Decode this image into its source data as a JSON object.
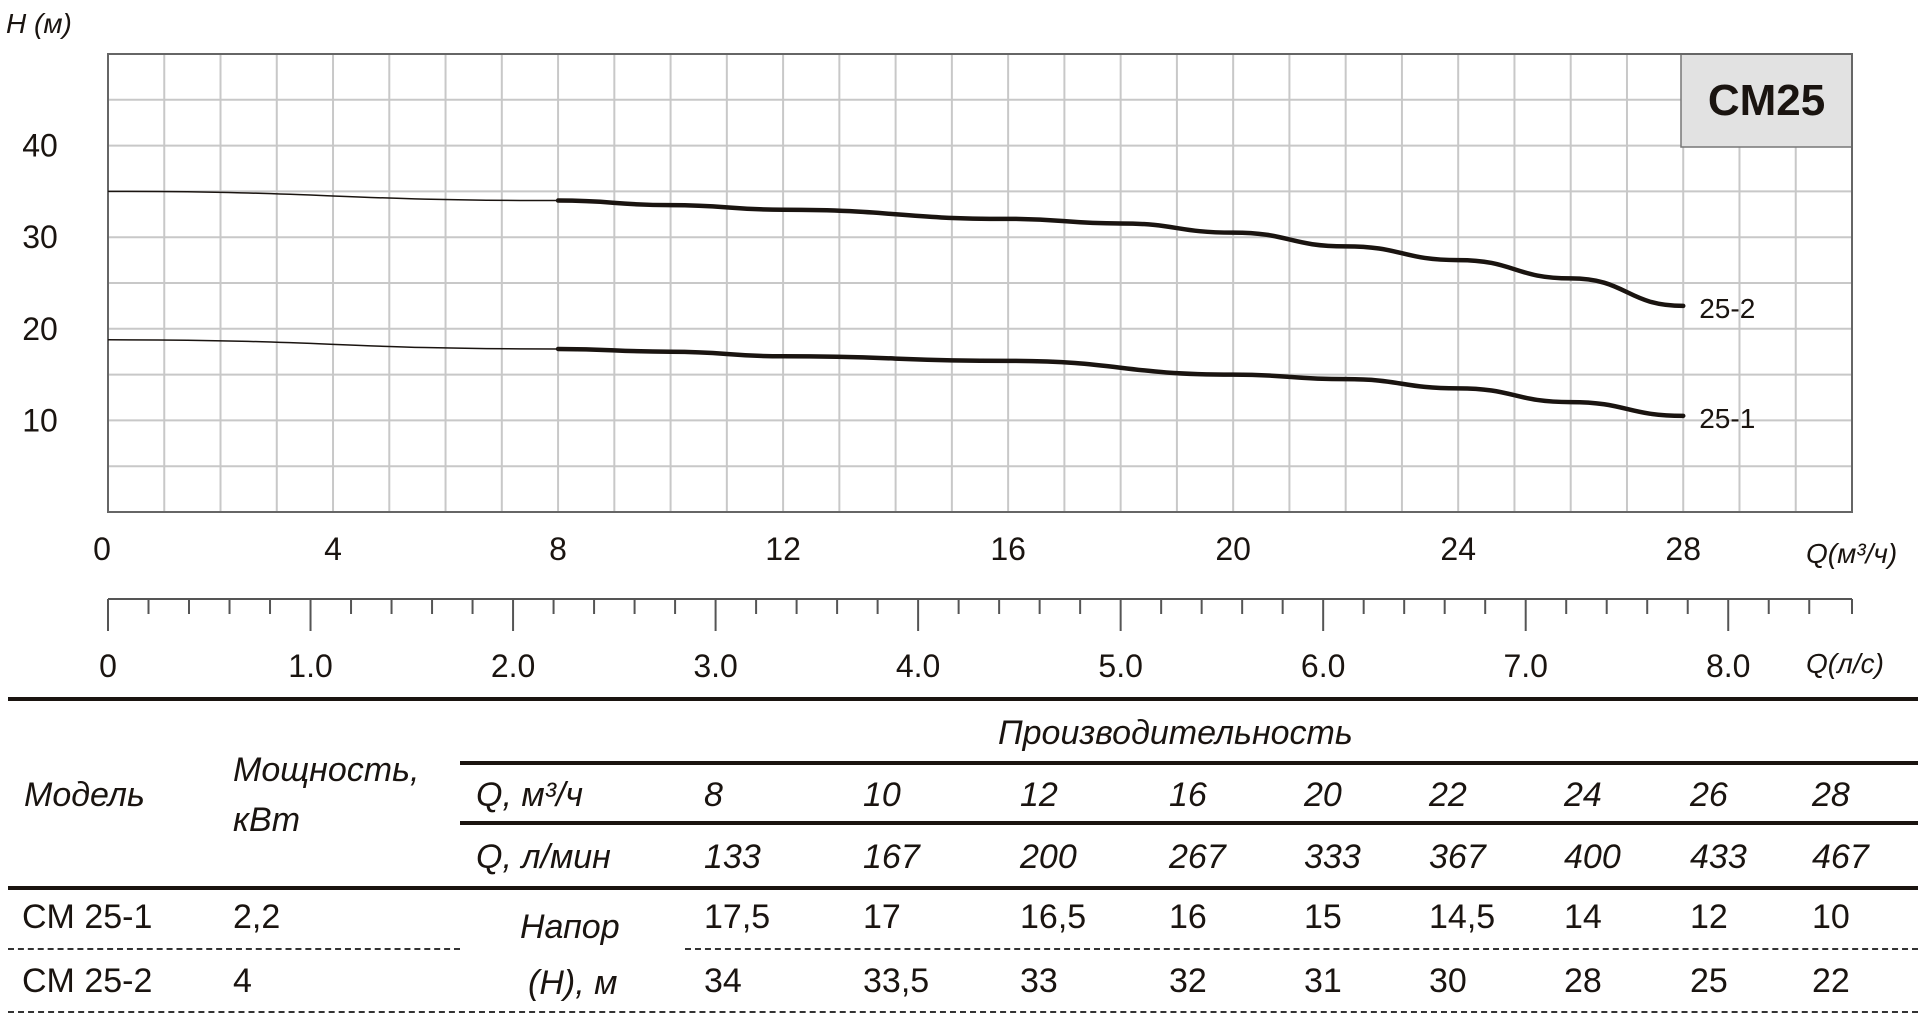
{
  "chart_data": {
    "type": "line",
    "title": "CM25",
    "ylabel": "H (м)",
    "xlabel": "Q(м³/ч)",
    "xlabel_secondary": "Q(л/с)",
    "xlim": [
      0,
      31
    ],
    "ylim": [
      0,
      50
    ],
    "grid": true,
    "x_ticks": [
      "0",
      "4",
      "8",
      "12",
      "16",
      "20",
      "24",
      "28"
    ],
    "x_tick_values": [
      0,
      4,
      8,
      12,
      16,
      20,
      24,
      28
    ],
    "y_ticks": [
      "10",
      "20",
      "30",
      "40"
    ],
    "y_tick_values": [
      10,
      20,
      30,
      40
    ],
    "secondary_ticks": [
      "0",
      "1.0",
      "2.0",
      "3.0",
      "4.0",
      "5.0",
      "6.0",
      "7.0",
      "8.0"
    ],
    "secondary_tick_values": [
      0,
      1,
      2,
      3,
      4,
      5,
      6,
      7,
      8
    ],
    "secondary_factor": 3.6,
    "series": [
      {
        "name": "25-2",
        "x": [
          0,
          8,
          10,
          12,
          16,
          18,
          20,
          22,
          24,
          26,
          28
        ],
        "y": [
          35,
          34,
          33.5,
          33,
          32,
          31.5,
          30.5,
          29,
          27.5,
          25.5,
          22.5
        ]
      },
      {
        "name": "25-1",
        "x": [
          0,
          8,
          10,
          12,
          16,
          20,
          22,
          24,
          26,
          28
        ],
        "y": [
          18.8,
          17.8,
          17.5,
          17,
          16.5,
          15,
          14.5,
          13.5,
          12,
          10.5
        ]
      }
    ]
  },
  "table": {
    "header_model": "Модель",
    "header_power_1": "Мощность,",
    "header_power_2": "кВт",
    "header_performance": "Производительность",
    "row_q_m3h_label": "Q, м³/ч",
    "row_q_lmin_label": "Q, л/мин",
    "head_label_1": "Напор",
    "head_label_2": "(Н), м",
    "q_m3h": [
      "8",
      "10",
      "12",
      "16",
      "20",
      "22",
      "24",
      "26",
      "28"
    ],
    "q_lmin": [
      "133",
      "167",
      "200",
      "267",
      "333",
      "367",
      "400",
      "433",
      "467"
    ],
    "rows": [
      {
        "model": "CM 25-1",
        "power": "2,2",
        "head": [
          "17,5",
          "17",
          "16,5",
          "16",
          "15",
          "14,5",
          "14",
          "12",
          "10"
        ]
      },
      {
        "model": "CM 25-2",
        "power": "4",
        "head": [
          "34",
          "33,5",
          "33",
          "32",
          "31",
          "30",
          "28",
          "25",
          "22"
        ]
      }
    ]
  }
}
